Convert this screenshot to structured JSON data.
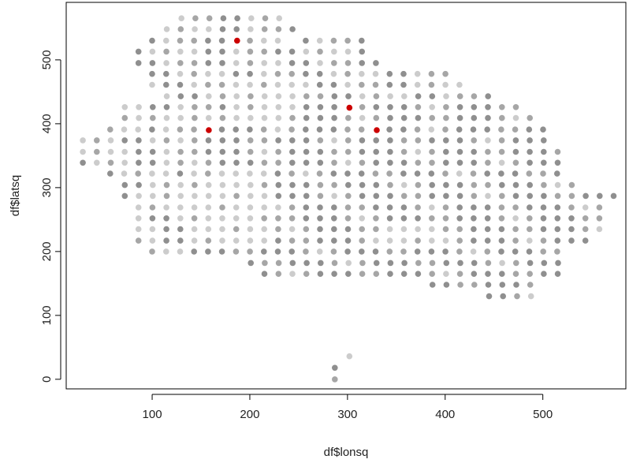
{
  "chart_data": {
    "type": "scatter",
    "title": "",
    "xlabel": "df$lonsq",
    "ylabel": "df$latsq",
    "xlim": [
      12,
      585
    ],
    "ylim": [
      -15,
      590
    ],
    "xticks": [
      100,
      200,
      300,
      400,
      500
    ],
    "yticks": [
      0,
      100,
      200,
      300,
      400,
      500
    ],
    "grid": false,
    "legend": "none",
    "colors": {
      "dark": "#8f8f8f",
      "mid": "#a6a6a6",
      "light": "#cccccc",
      "highlight": "#cc0000",
      "axis": "#000000"
    },
    "grid_step": {
      "x": 14.3,
      "y": 17.4
    },
    "rows": [
      {
        "y": 565,
        "x_from": 130,
        "x_to": 230
      },
      {
        "y": 548,
        "x_from": 115,
        "x_to": 245
      },
      {
        "y": 530,
        "x_from": 100,
        "x_to": 315
      },
      {
        "y": 513,
        "x_from": 86,
        "x_to": 315
      },
      {
        "y": 495,
        "x_from": 86,
        "x_to": 330
      },
      {
        "y": 478,
        "x_from": 100,
        "x_to": 402
      },
      {
        "y": 461,
        "x_from": 100,
        "x_to": 416
      },
      {
        "y": 443,
        "x_from": 115,
        "x_to": 445
      },
      {
        "y": 426,
        "x_from": 72,
        "x_to": 474
      },
      {
        "y": 409,
        "x_from": 72,
        "x_to": 488
      },
      {
        "y": 391,
        "x_from": 57,
        "x_to": 502
      },
      {
        "y": 374,
        "x_from": 29,
        "x_to": 502
      },
      {
        "y": 356,
        "x_from": 29,
        "x_to": 516
      },
      {
        "y": 339,
        "x_from": 29,
        "x_to": 516
      },
      {
        "y": 322,
        "x_from": 57,
        "x_to": 516
      },
      {
        "y": 304,
        "x_from": 72,
        "x_to": 531
      },
      {
        "y": 287,
        "x_from": 72,
        "x_to": 574
      },
      {
        "y": 269,
        "x_from": 86,
        "x_to": 559
      },
      {
        "y": 252,
        "x_from": 86,
        "x_to": 559
      },
      {
        "y": 235,
        "x_from": 86,
        "x_to": 559
      },
      {
        "y": 217,
        "x_from": 86,
        "x_to": 545
      },
      {
        "y": 200,
        "x_from": 100,
        "x_to": 531
      },
      {
        "y": 182,
        "x_from": 201,
        "x_to": 516
      },
      {
        "y": 165,
        "x_from": 215,
        "x_to": 516
      },
      {
        "y": 148,
        "x_from": 387,
        "x_to": 488
      },
      {
        "y": 130,
        "x_from": 445,
        "x_to": 488
      }
    ],
    "holes": [
      {
        "x": 102,
        "y": 547
      },
      {
        "x": 88,
        "y": 530
      },
      {
        "x": 244,
        "y": 530
      },
      {
        "x": 301,
        "y": 547
      },
      {
        "x": 72,
        "y": 479
      },
      {
        "x": 86,
        "y": 461
      },
      {
        "x": 531,
        "y": 201
      },
      {
        "x": 531,
        "y": 183
      }
    ],
    "light_regions": [
      {
        "x": [
          140,
          220
        ],
        "y": [
          205,
          330
        ]
      },
      {
        "x": [
          175,
          255
        ],
        "y": [
          400,
          470
        ]
      },
      {
        "x": [
          100,
          135
        ],
        "y": [
          390,
          420
        ]
      },
      {
        "x": [
          330,
          410
        ],
        "y": [
          205,
          240
        ]
      },
      {
        "x": [
          80,
          140
        ],
        "y": [
          260,
          300
        ]
      }
    ],
    "isolated_points": [
      {
        "x": 287,
        "y": 18,
        "shade": "dark"
      },
      {
        "x": 287,
        "y": 0,
        "shade": "mid"
      },
      {
        "x": 302,
        "y": 36,
        "shade": "light"
      }
    ],
    "highlight_points": [
      {
        "x": 187,
        "y": 530
      },
      {
        "x": 302,
        "y": 425
      },
      {
        "x": 158,
        "y": 390
      },
      {
        "x": 330,
        "y": 390
      }
    ]
  }
}
